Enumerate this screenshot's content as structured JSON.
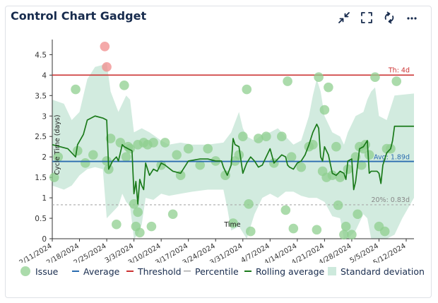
{
  "header": {
    "title": "Control Chart Gadget",
    "buttons": [
      {
        "name": "minimize-button",
        "icon": "collapse-arrows-icon"
      },
      {
        "name": "fullscreen-button",
        "icon": "fullscreen-icon"
      },
      {
        "name": "refresh-button",
        "icon": "refresh-icon"
      },
      {
        "name": "more-options-button",
        "icon": "ellipsis-icon"
      }
    ]
  },
  "colors": {
    "issue": "#8fcf8f",
    "issue_over": "#f08c8c",
    "average": "#2b6cb0",
    "threshold": "#cc3333",
    "percentile": "#aaaaaa",
    "rolling": "#1a7a1a",
    "stddev": "#cde9dc"
  },
  "chart_data": {
    "type": "scatter",
    "ylabel": "Cycle Time (days)",
    "xlabel": "Time",
    "ylim": [
      0,
      4.8
    ],
    "y_ticks": [
      "0",
      "0.5",
      "1",
      "1.5",
      "2",
      "2.5",
      "3",
      "3.5",
      "4",
      "4.5"
    ],
    "y_tick_values": [
      0,
      0.5,
      1,
      1.5,
      2,
      2.5,
      3,
      3.5,
      4,
      4.5
    ],
    "x_range": [
      0,
      93
    ],
    "x_ticks": [
      "2/11/2024",
      "2/18/2024",
      "2/25/2024",
      "3/3/2024",
      "3/10/2024",
      "3/17/2024",
      "3/24/2024",
      "3/31/2024",
      "4/7/2024",
      "4/14/2024",
      "4/21/2024",
      "4/28/2024",
      "5/5/2024",
      "5/12/2024"
    ],
    "x_tick_values": [
      0,
      7,
      14,
      21,
      28,
      35,
      42,
      49,
      56,
      63,
      70,
      77,
      84,
      91
    ],
    "average": {
      "value": 1.89,
      "label": "Avg: 1.89d"
    },
    "threshold": {
      "value": 4,
      "label": "Th: 4d"
    },
    "percentile": {
      "value": 0.83,
      "label": "20%: 0.83d"
    },
    "issues": [
      [
        0.5,
        1.5
      ],
      [
        1.5,
        2.0
      ],
      [
        6,
        3.65
      ],
      [
        6.5,
        2.15
      ],
      [
        8.5,
        1.85
      ],
      [
        10.5,
        2.05
      ],
      [
        13.5,
        4.7
      ],
      [
        14,
        4.2
      ],
      [
        14,
        1.9
      ],
      [
        14.5,
        1.7
      ],
      [
        15,
        2.45
      ],
      [
        16.5,
        0.35
      ],
      [
        17.5,
        2.35
      ],
      [
        18.5,
        3.75
      ],
      [
        19,
        2.0
      ],
      [
        19.5,
        2.25
      ],
      [
        20,
        2.2
      ],
      [
        21,
        0.85
      ],
      [
        21.5,
        0.3
      ],
      [
        22,
        0.65
      ],
      [
        22.5,
        0.15
      ],
      [
        22,
        2.3
      ],
      [
        23.5,
        2.35
      ],
      [
        24.5,
        2.3
      ],
      [
        25.5,
        0.3
      ],
      [
        26,
        2.35
      ],
      [
        28,
        1.8
      ],
      [
        29,
        2.35
      ],
      [
        31,
        0.6
      ],
      [
        32,
        2.05
      ],
      [
        33,
        1.55
      ],
      [
        35,
        2.2
      ],
      [
        38,
        1.8
      ],
      [
        40,
        2.2
      ],
      [
        42,
        1.9
      ],
      [
        44.5,
        1.55
      ],
      [
        46.5,
        0.38
      ],
      [
        47,
        1.9
      ],
      [
        48,
        2.05
      ],
      [
        49,
        2.5
      ],
      [
        50,
        3.65
      ],
      [
        50.5,
        0.85
      ],
      [
        51,
        0.18
      ],
      [
        53,
        2.45
      ],
      [
        55,
        2.5
      ],
      [
        57,
        1.85
      ],
      [
        59,
        2.5
      ],
      [
        60,
        0.7
      ],
      [
        60.5,
        3.85
      ],
      [
        61.5,
        2.0
      ],
      [
        62,
        0.25
      ],
      [
        64,
        1.75
      ],
      [
        66,
        2.25
      ],
      [
        67,
        2.3
      ],
      [
        68,
        0.22
      ],
      [
        68.5,
        3.95
      ],
      [
        69.5,
        1.65
      ],
      [
        70,
        3.15
      ],
      [
        70.5,
        1.5
      ],
      [
        71,
        3.7
      ],
      [
        72,
        1.55
      ],
      [
        73,
        2.25
      ],
      [
        73.5,
        0.82
      ],
      [
        74,
        1.5
      ],
      [
        75,
        0.1
      ],
      [
        75.5,
        0.3
      ],
      [
        76,
        1.7
      ],
      [
        77,
        0.1
      ],
      [
        78,
        2.0
      ],
      [
        78.5,
        0.6
      ],
      [
        79,
        2.25
      ],
      [
        79.5,
        1.8
      ],
      [
        80,
        2.2
      ],
      [
        80.5,
        2.3
      ],
      [
        81.5,
        2.05
      ],
      [
        83,
        3.95
      ],
      [
        84,
        0.3
      ],
      [
        85.5,
        0.18
      ],
      [
        86,
        2.2
      ],
      [
        87,
        2.2
      ],
      [
        88.5,
        3.85
      ]
    ],
    "rolling_average": [
      [
        0,
        2.3
      ],
      [
        4,
        2.2
      ],
      [
        6,
        2.0
      ],
      [
        6.5,
        2.3
      ],
      [
        8,
        2.55
      ],
      [
        9,
        2.9
      ],
      [
        11,
        3.0
      ],
      [
        13,
        2.95
      ],
      [
        14,
        2.9
      ],
      [
        14.5,
        1.7
      ],
      [
        15.5,
        1.9
      ],
      [
        16.5,
        2.0
      ],
      [
        17,
        1.9
      ],
      [
        17.5,
        2.1
      ],
      [
        18,
        2.3
      ],
      [
        18.5,
        2.25
      ],
      [
        19.5,
        2.2
      ],
      [
        20.5,
        2.15
      ],
      [
        21,
        1.1
      ],
      [
        21.5,
        1.4
      ],
      [
        22,
        0.85
      ],
      [
        22.5,
        1.45
      ],
      [
        23,
        1.3
      ],
      [
        23.5,
        1.2
      ],
      [
        24,
        1.85
      ],
      [
        25,
        1.55
      ],
      [
        26,
        1.7
      ],
      [
        27,
        1.65
      ],
      [
        28,
        1.85
      ],
      [
        29,
        1.8
      ],
      [
        31,
        1.65
      ],
      [
        33,
        1.6
      ],
      [
        35,
        1.9
      ],
      [
        38,
        1.95
      ],
      [
        40,
        1.95
      ],
      [
        42,
        1.9
      ],
      [
        43.5,
        1.9
      ],
      [
        44,
        1.75
      ],
      [
        45,
        1.55
      ],
      [
        46,
        1.8
      ],
      [
        46.5,
        2.45
      ],
      [
        47,
        2.3
      ],
      [
        48,
        2.25
      ],
      [
        49,
        1.6
      ],
      [
        50,
        1.85
      ],
      [
        51,
        2.0
      ],
      [
        52,
        1.9
      ],
      [
        53,
        1.75
      ],
      [
        54,
        1.8
      ],
      [
        55,
        2.0
      ],
      [
        56,
        2.2
      ],
      [
        57,
        1.85
      ],
      [
        58,
        1.95
      ],
      [
        59,
        2.05
      ],
      [
        60,
        2.0
      ],
      [
        60.5,
        1.8
      ],
      [
        61,
        1.75
      ],
      [
        62,
        1.7
      ],
      [
        63,
        1.85
      ],
      [
        64,
        1.9
      ],
      [
        65,
        2.05
      ],
      [
        66,
        2.3
      ],
      [
        67,
        2.6
      ],
      [
        68,
        2.8
      ],
      [
        68.5,
        2.7
      ],
      [
        69,
        2.0
      ],
      [
        69.5,
        1.9
      ],
      [
        70,
        2.25
      ],
      [
        71,
        2.05
      ],
      [
        72,
        1.6
      ],
      [
        73,
        1.55
      ],
      [
        74,
        1.65
      ],
      [
        75,
        1.6
      ],
      [
        75.5,
        1.45
      ],
      [
        76,
        1.9
      ],
      [
        77,
        1.95
      ],
      [
        77.5,
        1.2
      ],
      [
        78,
        1.4
      ],
      [
        79,
        2.2
      ],
      [
        80,
        2.25
      ],
      [
        81,
        2.4
      ],
      [
        81.5,
        1.6
      ],
      [
        82,
        1.65
      ],
      [
        83.5,
        1.65
      ],
      [
        84,
        1.6
      ],
      [
        84.5,
        1.35
      ],
      [
        85,
        1.8
      ],
      [
        86,
        2.1
      ],
      [
        87,
        2.2
      ],
      [
        87.5,
        2.4
      ],
      [
        88,
        2.75
      ],
      [
        93,
        2.75
      ]
    ],
    "stddev_upper": [
      [
        0,
        3.4
      ],
      [
        3,
        3.3
      ],
      [
        5,
        2.9
      ],
      [
        7,
        3.1
      ],
      [
        9,
        3.9
      ],
      [
        11,
        4.2
      ],
      [
        13,
        4.25
      ],
      [
        14,
        4.3
      ],
      [
        15,
        3.6
      ],
      [
        17,
        3.1
      ],
      [
        18,
        3.3
      ],
      [
        19,
        3.5
      ],
      [
        20,
        3.4
      ],
      [
        21,
        2.6
      ],
      [
        23,
        2.7
      ],
      [
        25,
        2.6
      ],
      [
        28,
        2.4
      ],
      [
        30,
        2.3
      ],
      [
        33,
        2.35
      ],
      [
        36,
        2.3
      ],
      [
        40,
        2.3
      ],
      [
        44,
        2.35
      ],
      [
        46,
        2.6
      ],
      [
        48,
        3.1
      ],
      [
        49,
        2.7
      ],
      [
        50,
        2.5
      ],
      [
        52,
        2.4
      ],
      [
        54,
        2.55
      ],
      [
        56,
        2.6
      ],
      [
        58,
        2.7
      ],
      [
        60,
        2.5
      ],
      [
        62,
        2.3
      ],
      [
        64,
        2.4
      ],
      [
        66,
        3.0
      ],
      [
        67,
        3.5
      ],
      [
        68,
        3.9
      ],
      [
        69,
        3.6
      ],
      [
        70,
        3.0
      ],
      [
        72,
        2.6
      ],
      [
        74,
        2.5
      ],
      [
        75,
        2.3
      ],
      [
        76,
        2.6
      ],
      [
        78,
        3.0
      ],
      [
        80,
        3.1
      ],
      [
        81,
        3.4
      ],
      [
        82,
        3.6
      ],
      [
        83,
        3.7
      ],
      [
        84,
        3.0
      ],
      [
        86,
        2.9
      ],
      [
        88,
        3.5
      ],
      [
        93,
        3.55
      ]
    ],
    "stddev_lower": [
      [
        0,
        1.3
      ],
      [
        3,
        1.2
      ],
      [
        5,
        1.3
      ],
      [
        7,
        1.55
      ],
      [
        9,
        1.7
      ],
      [
        11,
        1.75
      ],
      [
        13,
        1.7
      ],
      [
        14,
        0.5
      ],
      [
        15,
        0.6
      ],
      [
        17,
        0.8
      ],
      [
        18,
        1.1
      ],
      [
        19,
        0.9
      ],
      [
        20,
        0.8
      ],
      [
        21,
        0.0
      ],
      [
        22,
        0.1
      ],
      [
        23,
        0.35
      ],
      [
        24,
        1.0
      ],
      [
        26,
        0.95
      ],
      [
        28,
        1.1
      ],
      [
        30,
        1.05
      ],
      [
        33,
        1.1
      ],
      [
        36,
        1.15
      ],
      [
        40,
        1.2
      ],
      [
        44,
        1.2
      ],
      [
        45,
        0.75
      ],
      [
        46,
        0.2
      ],
      [
        48,
        0.3
      ],
      [
        50,
        0.0
      ],
      [
        52,
        0.6
      ],
      [
        54,
        1.0
      ],
      [
        56,
        1.1
      ],
      [
        58,
        1.0
      ],
      [
        60,
        1.15
      ],
      [
        62,
        1.15
      ],
      [
        64,
        1.05
      ],
      [
        66,
        1.0
      ],
      [
        68,
        1.0
      ],
      [
        70,
        0.9
      ],
      [
        72,
        0.55
      ],
      [
        74,
        0.5
      ],
      [
        75,
        0.0
      ],
      [
        76,
        0.0
      ],
      [
        78,
        0.2
      ],
      [
        80,
        0.6
      ],
      [
        81,
        0.5
      ],
      [
        82,
        0.0
      ],
      [
        84,
        0.0
      ],
      [
        86,
        0.0
      ],
      [
        88,
        0.1
      ],
      [
        90,
        0.5
      ],
      [
        93,
        1.0
      ]
    ]
  },
  "legend": [
    {
      "label": "Issue",
      "kind": "circle"
    },
    {
      "label": "Average",
      "kind": "average"
    },
    {
      "label": "Threshold",
      "kind": "threshold"
    },
    {
      "label": "Percentile",
      "kind": "percentile"
    },
    {
      "label": "Rolling average",
      "kind": "rolling"
    },
    {
      "label": "Standard deviation",
      "kind": "stddev"
    }
  ]
}
